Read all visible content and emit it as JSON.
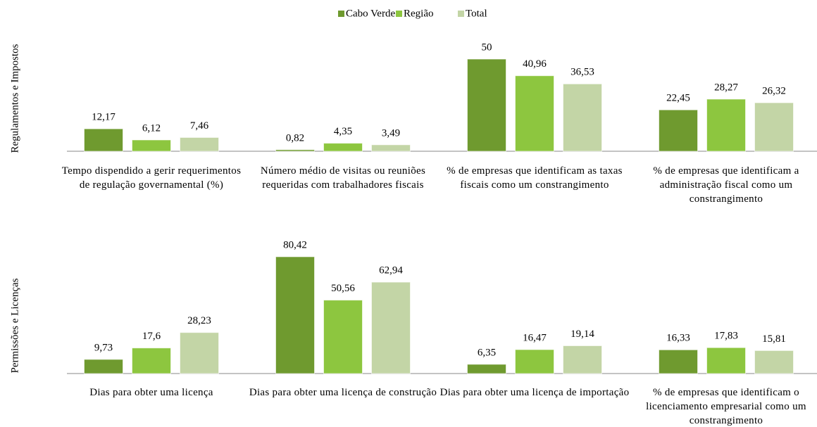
{
  "chart_data": [
    {
      "type": "bar",
      "y_label": "Regulamentos e Impostos",
      "categories": [
        "Tempo dispendido a gerir requerimentos de regulação governamental (%)",
        "Número médio de visitas ou reuniões requeridas com trabalhadores fiscais",
        "% de empresas que identificam as taxas fiscais como um constrangimento",
        "% de empresas que identificam a administração fiscal como um constrangimento"
      ],
      "series": [
        {
          "name": "Cabo Verde",
          "color": "#6f9a2f",
          "values": [
            12.17,
            0.82,
            50,
            22.45
          ],
          "value_labels": [
            "12,17",
            "0,82",
            "50",
            "22,45"
          ]
        },
        {
          "name": "Região",
          "color": "#8dc63f",
          "values": [
            6.12,
            4.35,
            40.96,
            28.27
          ],
          "value_labels": [
            "6,12",
            "4,35",
            "40,96",
            "28,27"
          ]
        },
        {
          "name": "Total",
          "color": "#c3d5a6",
          "values": [
            7.46,
            3.49,
            36.53,
            26.32
          ],
          "value_labels": [
            "7,46",
            "3,49",
            "36,53",
            "26,32"
          ]
        }
      ]
    },
    {
      "type": "bar",
      "y_label": "Permissões e Licenças",
      "categories": [
        "Dias para obter uma licença",
        "Dias para obter uma licença de construção",
        "Dias para obter uma licença de importação",
        "% de empresas que identificam o licenciamento empresarial como um constrangimento"
      ],
      "series": [
        {
          "color": "#6f9a2f",
          "values": [
            9.73,
            80.42,
            6.35,
            16.33
          ],
          "value_labels": [
            "9,73",
            "80,42",
            "6,35",
            "16,33"
          ]
        },
        {
          "color": "#8dc63f",
          "values": [
            17.6,
            50.56,
            16.47,
            17.83
          ],
          "value_labels": [
            "17,6",
            "50,56",
            "16,47",
            "17,83"
          ]
        },
        {
          "color": "#c3d5a6",
          "values": [
            28.23,
            62.94,
            19.14,
            15.81
          ],
          "value_labels": [
            "28,23",
            "62,94",
            "19,14",
            "15,81"
          ]
        }
      ]
    }
  ]
}
